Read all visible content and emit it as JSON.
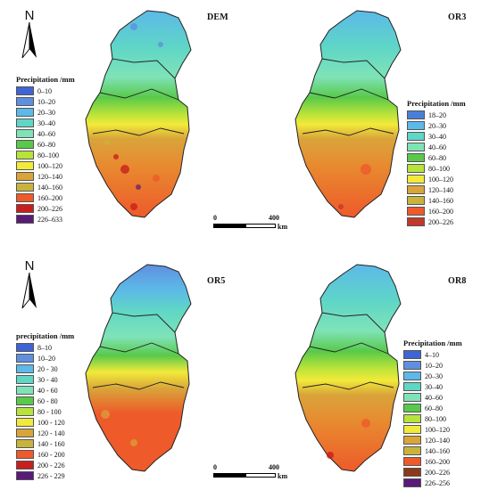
{
  "north_arrow": {
    "letter": "N"
  },
  "panels": [
    {
      "id": "dem",
      "title": "DEM",
      "legend_title": "Precipitation /mm",
      "legend": [
        {
          "label": "0–10",
          "color": "#3f64d6"
        },
        {
          "label": "10–20",
          "color": "#5f8fe0"
        },
        {
          "label": "20–30",
          "color": "#5cb9e8"
        },
        {
          "label": "30–40",
          "color": "#5fd6c6"
        },
        {
          "label": "40–60",
          "color": "#7fe3b8"
        },
        {
          "label": "60–80",
          "color": "#59c94a"
        },
        {
          "label": "80–100",
          "color": "#b8e33a"
        },
        {
          "label": "100–120",
          "color": "#f2ea3a"
        },
        {
          "label": "120–140",
          "color": "#d9a43a"
        },
        {
          "label": "140–160",
          "color": "#c8b43c"
        },
        {
          "label": "160–200",
          "color": "#ee5a2a"
        },
        {
          "label": "200–226",
          "color": "#c81e1e"
        },
        {
          "label": "226–633",
          "color": "#5a1a78"
        }
      ]
    },
    {
      "id": "or3",
      "title": "OR3",
      "legend_title": "Precipitation /mm",
      "legend": [
        {
          "label": "18–20",
          "color": "#4a7edb"
        },
        {
          "label": "20–30",
          "color": "#5cb9e8"
        },
        {
          "label": "30–40",
          "color": "#5fd6c6"
        },
        {
          "label": "40–60",
          "color": "#7fe3b8"
        },
        {
          "label": "60–80",
          "color": "#59c94a"
        },
        {
          "label": "80–100",
          "color": "#b8e33a"
        },
        {
          "label": "100–120",
          "color": "#f2ea3a"
        },
        {
          "label": "120–140",
          "color": "#d9a43a"
        },
        {
          "label": "140–160",
          "color": "#c8b43c"
        },
        {
          "label": "160–200",
          "color": "#ee5a2a"
        },
        {
          "label": "200–226",
          "color": "#c0392b"
        }
      ]
    },
    {
      "id": "or5",
      "title": "OR5",
      "legend_title": "precipitation /mm",
      "legend": [
        {
          "label": "8–10",
          "color": "#3f64d6"
        },
        {
          "label": "10–20",
          "color": "#5f8fe0"
        },
        {
          "label": "20 - 30",
          "color": "#5cb9e8"
        },
        {
          "label": "30 - 40",
          "color": "#5fd6c6"
        },
        {
          "label": "40 - 60",
          "color": "#7fe3b8"
        },
        {
          "label": "60 - 80",
          "color": "#59c94a"
        },
        {
          "label": "80 - 100",
          "color": "#b8e33a"
        },
        {
          "label": "100 - 120",
          "color": "#f2ea3a"
        },
        {
          "label": "120 - 140",
          "color": "#d9a43a"
        },
        {
          "label": "140 - 160",
          "color": "#c8b43c"
        },
        {
          "label": "160 - 200",
          "color": "#ee5a2a"
        },
        {
          "label": "200 - 226",
          "color": "#c81e1e"
        },
        {
          "label": "226 - 229",
          "color": "#5a1a78"
        }
      ]
    },
    {
      "id": "or8",
      "title": "OR8",
      "legend_title": "Precipitation /mm",
      "legend": [
        {
          "label": "4–10",
          "color": "#3f64d6"
        },
        {
          "label": "10–20",
          "color": "#5f8fe0"
        },
        {
          "label": "20–30",
          "color": "#5cb9e8"
        },
        {
          "label": "30–40",
          "color": "#5fd6c6"
        },
        {
          "label": "40–60",
          "color": "#7fe3b8"
        },
        {
          "label": "60–80",
          "color": "#59c94a"
        },
        {
          "label": "80–100",
          "color": "#b8e33a"
        },
        {
          "label": "100–120",
          "color": "#f2ea3a"
        },
        {
          "label": "120–140",
          "color": "#d9a43a"
        },
        {
          "label": "140–160",
          "color": "#c8b43c"
        },
        {
          "label": "160–200",
          "color": "#ee5a2a"
        },
        {
          "label": "200–226",
          "color": "#8a3a1a"
        },
        {
          "label": "226–256",
          "color": "#5a1a78"
        }
      ]
    }
  ],
  "scalebar": {
    "start": "0",
    "end": "400",
    "unit": "km"
  },
  "colors": {
    "northern_blue": "#5cb9e8",
    "teal": "#5fd6c6",
    "green": "#59c94a",
    "yellow": "#f2ea3a",
    "orange": "#d9a43a",
    "red_orange": "#ee5a2a",
    "boundary": "#222222"
  }
}
